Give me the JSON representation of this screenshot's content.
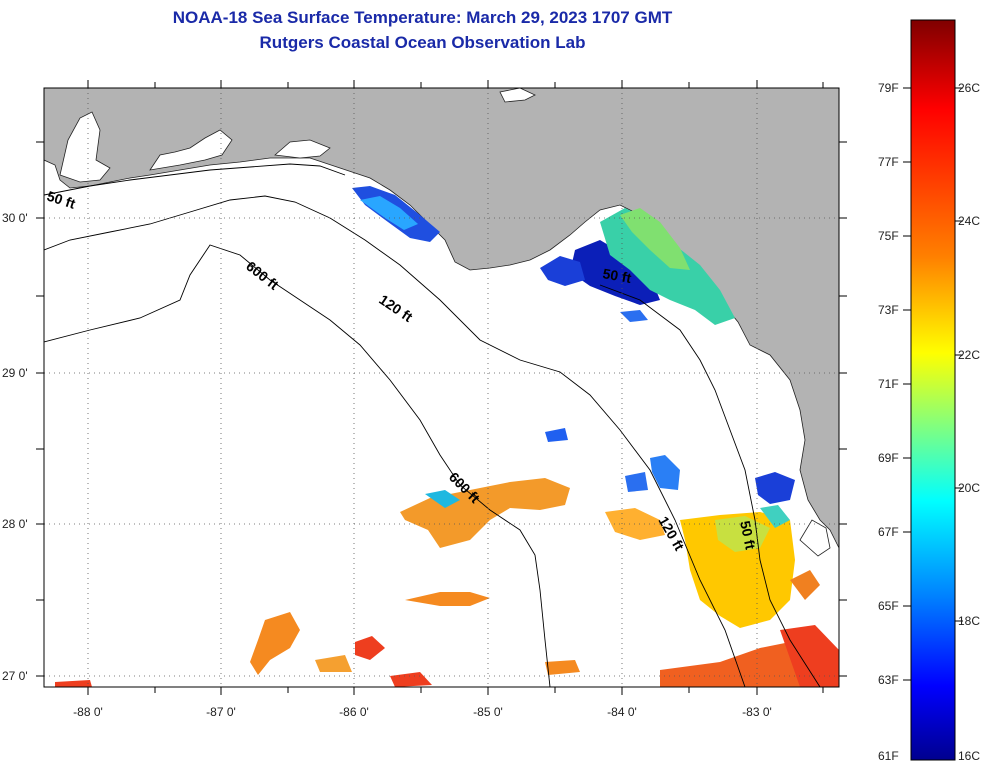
{
  "title_line1": "NOAA-18 Sea Surface Temperature:  March 29, 2023 1707 GMT",
  "title_line2": "Rutgers Coastal Ocean Observation Lab",
  "axes": {
    "lon_labels": [
      "-88 0'",
      "-87 0'",
      "-86 0'",
      "-85 0'",
      "-84 0'",
      "-83 0'"
    ],
    "lat_labels": [
      "30 0'",
      "29 0'",
      "28 0'",
      "27 0'"
    ]
  },
  "contours": {
    "label_50_west": "50 ft",
    "label_600_north": "600 ft",
    "label_120_north": "120 ft",
    "label_50_bigbend": "50 ft",
    "label_600_south": "600 ft",
    "label_120_south": "120 ft",
    "label_50_south": "50 ft"
  },
  "colorbar": {
    "fahrenheit": [
      "79F",
      "77F",
      "75F",
      "73F",
      "71F",
      "69F",
      "67F",
      "65F",
      "63F",
      "61F"
    ],
    "celsius": [
      "26C",
      "24C",
      "22C",
      "20C",
      "18C",
      "16C"
    ],
    "colors": [
      "#7f0000",
      "#ff0000",
      "#ff8000",
      "#ffff00",
      "#80ff80",
      "#00ffff",
      "#0080ff",
      "#0000ff",
      "#00008f"
    ]
  }
}
